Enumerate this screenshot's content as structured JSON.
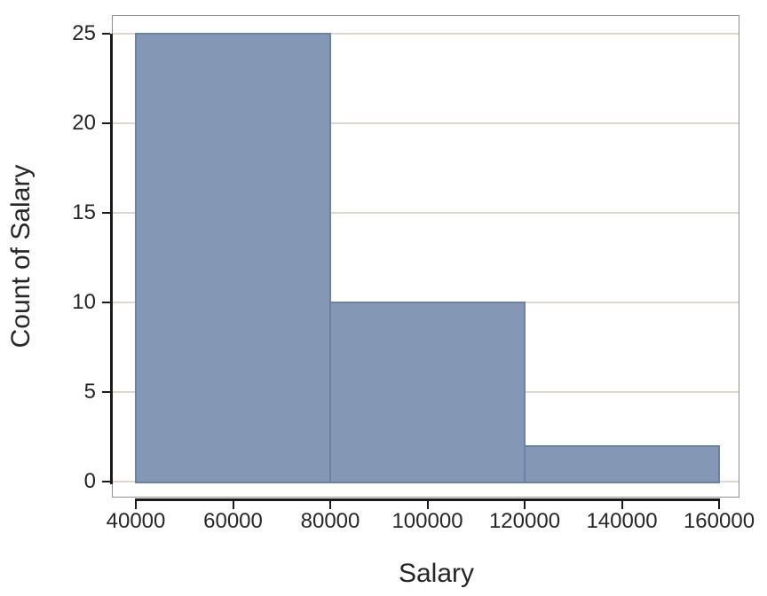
{
  "chart_data": {
    "type": "histogram",
    "title": "",
    "xlabel": "Salary",
    "ylabel": "Count of Salary",
    "bin_edges": [
      40000,
      80000,
      120000,
      160000
    ],
    "counts": [
      25,
      10,
      2
    ],
    "bins": [
      {
        "range": "40000-80000",
        "count": 25
      },
      {
        "range": "80000-120000",
        "count": 10
      },
      {
        "range": "120000-160000",
        "count": 2
      }
    ],
    "x_tick_values": [
      40000,
      60000,
      80000,
      100000,
      120000,
      140000,
      160000
    ],
    "x_tick_labels": [
      "40000",
      "60000",
      "80000",
      "100000",
      "120000",
      "140000",
      "160000"
    ],
    "y_tick_values": [
      0,
      5,
      10,
      15,
      20,
      25
    ],
    "y_tick_labels": [
      "0",
      "5",
      "10",
      "15",
      "20",
      "25"
    ],
    "xlim": [
      40000,
      160000
    ],
    "ylim": [
      0,
      25
    ],
    "grid": "horizontal-only",
    "legend": "none",
    "colors": {
      "bar_fill": "#8498b6",
      "bar_edge": "#6b81a6",
      "gridline": "#ded5cc",
      "axis_text": "#262626",
      "spine": "#1b1b1b",
      "plot_border": "#8f8f8f",
      "background": "#ffffff"
    }
  }
}
